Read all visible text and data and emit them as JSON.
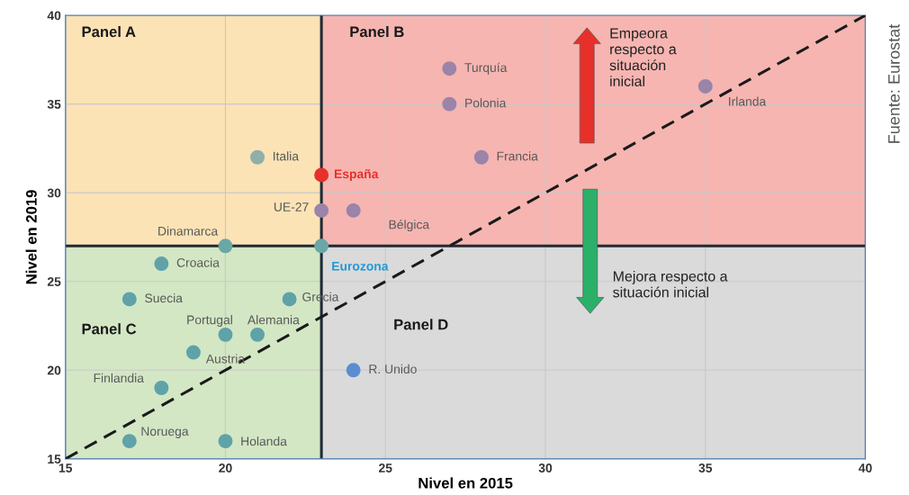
{
  "chart_data": {
    "type": "scatter",
    "xlabel": "Nivel en 2015",
    "ylabel": "Nivel en 2019",
    "xlim": [
      15,
      40
    ],
    "ylim": [
      15,
      40
    ],
    "xticks": [
      15,
      20,
      25,
      30,
      35,
      40
    ],
    "yticks": [
      15,
      20,
      25,
      30,
      35,
      40
    ],
    "grid": true,
    "legend": false,
    "marker": "circle",
    "ref_lines": [
      {
        "axis": "x",
        "value": 23,
        "color": "#1f2a36"
      },
      {
        "axis": "y",
        "value": 27,
        "color": "#1f2a36"
      }
    ],
    "series": [
      {
        "name": "Turquía",
        "color": "#9a84aa",
        "x": [
          27
        ],
        "values": [
          37
        ]
      },
      {
        "name": "Polonia",
        "color": "#9a84aa",
        "x": [
          27
        ],
        "values": [
          35
        ]
      },
      {
        "name": "Irlanda",
        "color": "#9a84aa",
        "x": [
          35
        ],
        "values": [
          36
        ]
      },
      {
        "name": "Francia",
        "color": "#9a84aa",
        "x": [
          28
        ],
        "values": [
          32
        ]
      },
      {
        "name": "Italia",
        "color": "#8fb0a8",
        "x": [
          21
        ],
        "values": [
          32
        ]
      },
      {
        "name": "España",
        "color": "#e8302a",
        "x": [
          23
        ],
        "values": [
          31
        ]
      },
      {
        "name": "UE-27",
        "color": "#9a84aa",
        "x": [
          23
        ],
        "values": [
          29
        ]
      },
      {
        "name": "Bélgica",
        "color": "#9a84aa",
        "x": [
          24
        ],
        "values": [
          29
        ]
      },
      {
        "name": "Dinamarca",
        "color": "#6aa8a8",
        "x": [
          20
        ],
        "values": [
          27
        ]
      },
      {
        "name": "Eurozona",
        "color": "#6aa8a8",
        "x": [
          23
        ],
        "values": [
          27
        ]
      },
      {
        "name": "Croacia",
        "color": "#5fa3a8",
        "x": [
          18
        ],
        "values": [
          26
        ]
      },
      {
        "name": "Suecia",
        "color": "#5fa3a8",
        "x": [
          17
        ],
        "values": [
          24
        ]
      },
      {
        "name": "Grecia",
        "color": "#5fa3a8",
        "x": [
          22
        ],
        "values": [
          24
        ]
      },
      {
        "name": "Portugal",
        "color": "#5fa3a8",
        "x": [
          20
        ],
        "values": [
          22
        ]
      },
      {
        "name": "Alemania",
        "color": "#5fa3a8",
        "x": [
          21
        ],
        "values": [
          22
        ]
      },
      {
        "name": "Austria",
        "color": "#5fa3a8",
        "x": [
          19
        ],
        "values": [
          21
        ]
      },
      {
        "name": "Finlandia",
        "color": "#5fa3a8",
        "x": [
          18
        ],
        "values": [
          19
        ]
      },
      {
        "name": "Noruega",
        "color": "#5fa3a8",
        "x": [
          17
        ],
        "values": [
          16
        ]
      },
      {
        "name": "Holanda",
        "color": "#5fa3a8",
        "x": [
          20
        ],
        "values": [
          16
        ]
      },
      {
        "name": "R. Unido",
        "color": "#5b8ed0",
        "x": [
          24
        ],
        "values": [
          20
        ]
      },
      {
        "type": "line",
        "color": "#1a1a1a",
        "line_style": "dashed",
        "marker": "none",
        "x": [
          15,
          40
        ],
        "values": [
          15,
          40
        ]
      }
    ],
    "annotations": [
      "Panel A",
      "Panel B",
      "Panel C",
      "Panel D",
      "Empeora\nrespecto a\nsituación\ninicial",
      "Mejora respecto a\nsituación inicial",
      "Fuente: Eurostat"
    ]
  }
}
